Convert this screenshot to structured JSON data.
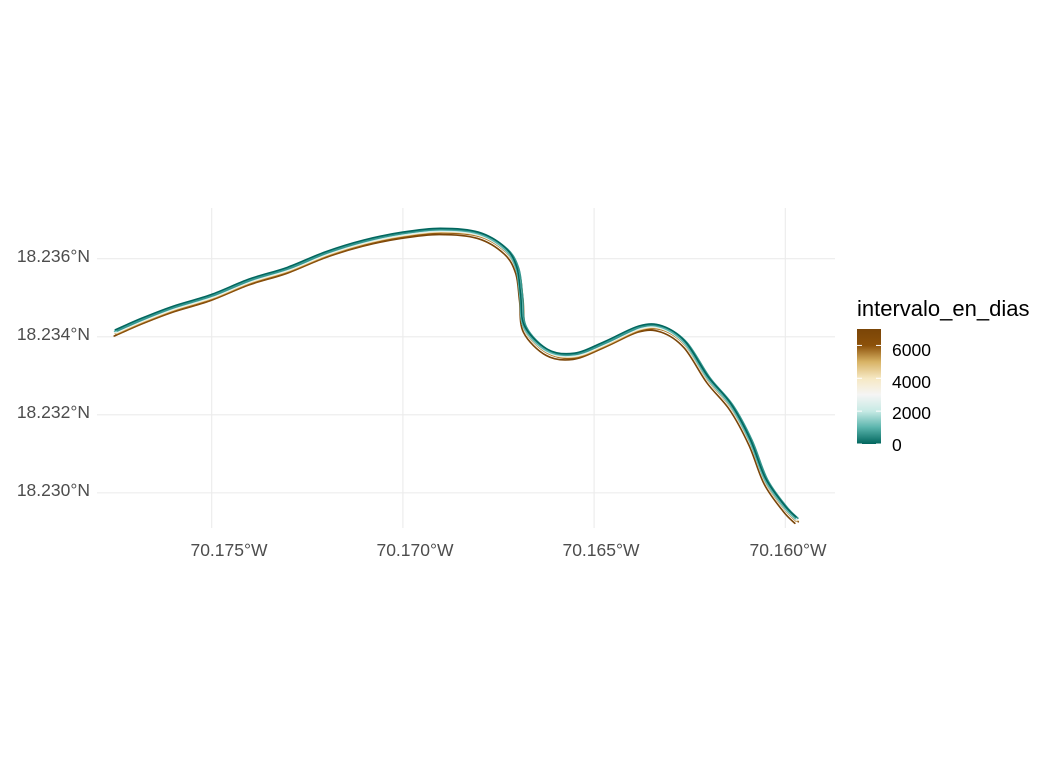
{
  "chart_data": {
    "type": "map",
    "subject": "river centerline traces colored by interval",
    "x_axis": {
      "label": "",
      "ticks": [
        {
          "value": -70.175,
          "label": "70.175°W"
        },
        {
          "value": -70.17,
          "label": "70.170°W"
        },
        {
          "value": -70.165,
          "label": "70.165°W"
        },
        {
          "value": -70.16,
          "label": "70.160°W"
        }
      ],
      "range": [
        -70.178,
        -70.1587
      ]
    },
    "y_axis": {
      "label": "",
      "ticks": [
        {
          "value": 18.236,
          "label": "18.236°N"
        },
        {
          "value": 18.234,
          "label": "18.234°N"
        },
        {
          "value": 18.232,
          "label": "18.232°N"
        },
        {
          "value": 18.23,
          "label": "18.230°N"
        }
      ],
      "range": [
        18.2291,
        18.2373
      ]
    },
    "grid": true,
    "legend": {
      "title": "intervalo_en_dias",
      "position": "right",
      "scale_min": 0,
      "scale_max": 7000,
      "labels": [
        "6000",
        "4000",
        "2000",
        "0"
      ],
      "label_values": [
        6000,
        4000,
        2000,
        0
      ],
      "colors": [
        "#01665e",
        "#5ab4ac",
        "#c7eae5",
        "#f5f5f5",
        "#f6e8c3",
        "#d8b365",
        "#8c510a",
        "#7a4508"
      ]
    },
    "base_path": [
      [
        -70.1775,
        18.2341
      ],
      [
        -70.1768,
        18.2344
      ],
      [
        -70.176,
        18.2347
      ],
      [
        -70.175,
        18.235
      ],
      [
        -70.174,
        18.2354
      ],
      [
        -70.173,
        18.2357
      ],
      [
        -70.172,
        18.2361
      ],
      [
        -70.171,
        18.2364
      ],
      [
        -70.17,
        18.2366
      ],
      [
        -70.169,
        18.2367
      ],
      [
        -70.168,
        18.2366
      ],
      [
        -70.1673,
        18.2362
      ],
      [
        -70.167,
        18.2357
      ],
      [
        -70.1669,
        18.235
      ],
      [
        -70.1668,
        18.2342
      ],
      [
        -70.1662,
        18.2336
      ],
      [
        -70.1655,
        18.2335
      ],
      [
        -70.1647,
        18.2338
      ],
      [
        -70.1638,
        18.2342
      ],
      [
        -70.1632,
        18.2342
      ],
      [
        -70.1626,
        18.2338
      ],
      [
        -70.162,
        18.2329
      ],
      [
        -70.1614,
        18.2322
      ],
      [
        -70.1609,
        18.2313
      ],
      [
        -70.1605,
        18.2303
      ],
      [
        -70.16,
        18.2296
      ],
      [
        -70.1597,
        18.2293
      ]
    ],
    "series": [
      {
        "interval_days": 7200,
        "color": "#7a4508",
        "offset": [
          -5e-05,
          -8e-05
        ]
      },
      {
        "interval_days": 6800,
        "color": "#8c510a",
        "offset": [
          4e-05,
          -4e-05
        ]
      },
      {
        "interval_days": 6000,
        "color": "#b07a2a",
        "offset": [
          -2e-05,
          -2e-05
        ]
      },
      {
        "interval_days": 5200,
        "color": "#dfc27d",
        "offset": [
          2e-05,
          -1e-05
        ]
      },
      {
        "interval_days": 4600,
        "color": "#f6e8c3",
        "offset": [
          -1e-05,
          0.0
        ]
      },
      {
        "interval_days": 4000,
        "color": "#f5f5f5",
        "offset": [
          1e-05,
          1e-05
        ]
      },
      {
        "interval_days": 3000,
        "color": "#e2f2ef",
        "offset": [
          -3e-05,
          1e-05
        ]
      },
      {
        "interval_days": 2000,
        "color": "#c7eae5",
        "offset": [
          0.0,
          3e-05
        ]
      },
      {
        "interval_days": 1200,
        "color": "#5ab4ac",
        "offset": [
          -4e-05,
          4e-05
        ]
      },
      {
        "interval_days": 600,
        "color": "#35978f",
        "offset": [
          3e-05,
          5e-05
        ]
      },
      {
        "interval_days": 0,
        "color": "#01665e",
        "offset": [
          -2e-05,
          8e-05
        ]
      }
    ]
  }
}
